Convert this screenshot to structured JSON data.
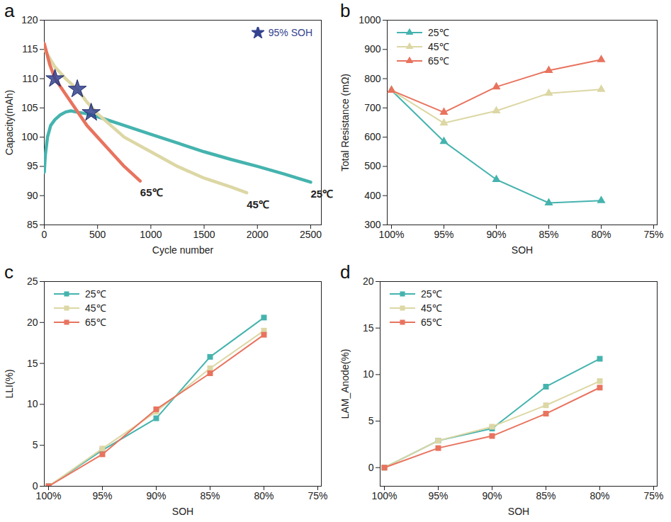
{
  "chart_data": [
    {
      "type": "line",
      "panel": "a",
      "x_label": "Cycle number",
      "y_label": "Capacity(mAh)",
      "xlim": [
        0,
        2600
      ],
      "xticks": [
        0,
        500,
        1000,
        1500,
        2000,
        2500
      ],
      "ylim": [
        85,
        120
      ],
      "yticks": [
        85,
        90,
        95,
        100,
        105,
        110,
        115,
        120
      ],
      "series": [
        {
          "name": "25℃",
          "color": "#45b3ae",
          "x": [
            0,
            10,
            30,
            60,
            100,
            150,
            200,
            250,
            300,
            400,
            500,
            700,
            1000,
            1250,
            1500,
            1750,
            2000,
            2250,
            2500
          ],
          "values": [
            94,
            97,
            100,
            102,
            103,
            103.8,
            104.3,
            104.5,
            104.3,
            104,
            103.5,
            102.3,
            100.5,
            99,
            97.5,
            96.2,
            95,
            93.7,
            92.3
          ]
        },
        {
          "name": "45℃",
          "color": "#dcd7a4",
          "x": [
            0,
            100,
            200,
            310,
            400,
            500,
            750,
            1000,
            1250,
            1500,
            1750,
            1900
          ],
          "values": [
            115,
            112,
            110,
            108.2,
            106,
            104,
            100,
            97.5,
            95,
            93,
            91.5,
            90.5
          ]
        },
        {
          "name": "65℃",
          "color": "#e8735e",
          "x": [
            0,
            50,
            100,
            250,
            400,
            600,
            750,
            900
          ],
          "values": [
            116,
            112.5,
            110,
            106,
            102,
            98,
            95,
            92.5
          ]
        }
      ],
      "markers": {
        "name": "95% SOH",
        "color": "#34438f",
        "marker": "star",
        "legend": "top-right",
        "x": [
          100,
          310,
          440
        ],
        "y": [
          110,
          108.2,
          104.2
        ]
      }
    },
    {
      "type": "line",
      "panel": "b",
      "x_label": "SOH",
      "y_label": "Total Resistance (mΩ)",
      "categories": [
        "100%",
        "95%",
        "90%",
        "85%",
        "80%",
        "75%"
      ],
      "ylim": [
        300,
        1000
      ],
      "yticks": [
        300,
        400,
        500,
        600,
        700,
        800,
        900,
        1000
      ],
      "legend": "top-left",
      "marker": "triangle",
      "series": [
        {
          "name": "25℃",
          "color": "#45b3ae",
          "values": [
            760,
            585,
            455,
            375,
            383,
            null
          ]
        },
        {
          "name": "45℃",
          "color": "#dcd7a4",
          "values": [
            760,
            648,
            690,
            750,
            763,
            null
          ]
        },
        {
          "name": "65℃",
          "color": "#e8735e",
          "values": [
            760,
            685,
            772,
            828,
            865,
            null
          ]
        }
      ]
    },
    {
      "type": "line",
      "panel": "c",
      "x_label": "SOH",
      "y_label": "LLI(%)",
      "categories": [
        "100%",
        "95%",
        "90%",
        "85%",
        "80%",
        "75%"
      ],
      "ylim": [
        0,
        25
      ],
      "yticks": [
        0,
        5,
        10,
        15,
        20,
        25
      ],
      "legend": "top-left",
      "marker": "square",
      "series": [
        {
          "name": "25℃",
          "color": "#45b3ae",
          "values": [
            0,
            4.4,
            8.3,
            15.8,
            20.6,
            null
          ]
        },
        {
          "name": "45℃",
          "color": "#dcd7a4",
          "values": [
            0,
            4.6,
            9.1,
            14.4,
            19.0,
            null
          ]
        },
        {
          "name": "65℃",
          "color": "#e8735e",
          "values": [
            0,
            3.9,
            9.4,
            13.8,
            18.5,
            null
          ]
        }
      ]
    },
    {
      "type": "line",
      "panel": "d",
      "x_label": "SOH",
      "y_label": "LAM_Anode(%)",
      "categories": [
        "100%",
        "95%",
        "90%",
        "85%",
        "80%",
        "75%"
      ],
      "ylim": [
        -2,
        20
      ],
      "yticks": [
        0,
        5,
        10,
        15,
        20
      ],
      "legend": "top-left",
      "marker": "square",
      "series": [
        {
          "name": "25℃",
          "color": "#45b3ae",
          "values": [
            0,
            2.9,
            4.2,
            8.7,
            11.7,
            null
          ]
        },
        {
          "name": "45℃",
          "color": "#dcd7a4",
          "values": [
            0,
            2.9,
            4.4,
            6.7,
            9.3,
            null
          ]
        },
        {
          "name": "65℃",
          "color": "#e8735e",
          "values": [
            0,
            2.1,
            3.4,
            5.8,
            8.6,
            null
          ]
        }
      ]
    }
  ]
}
